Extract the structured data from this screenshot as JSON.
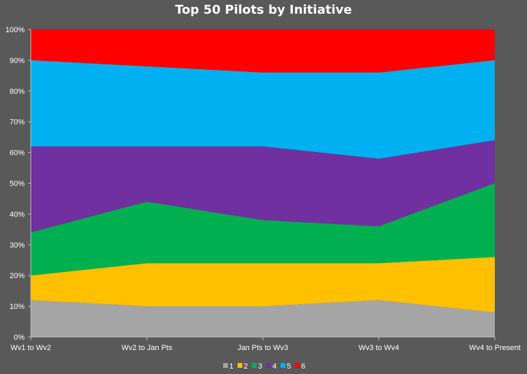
{
  "chart_data": {
    "type": "area",
    "stacked": "percent",
    "title": "Top 50 Pilots by Initiative",
    "categories": [
      "Wv1 to Wv2",
      "Wv2 to Jan Pts",
      "Jan Pts to Wv3",
      "Wv3 to Wv4",
      "Wv4 to Present"
    ],
    "ylim": [
      0,
      100
    ],
    "yticks": [
      "0%",
      "10%",
      "20%",
      "30%",
      "40%",
      "50%",
      "60%",
      "70%",
      "80%",
      "90%",
      "100%"
    ],
    "xlabel": "",
    "ylabel": "",
    "legend_position": "bottom",
    "series": [
      {
        "name": "1",
        "color": "#a5a5a5",
        "values": [
          12,
          10,
          10,
          12,
          8
        ]
      },
      {
        "name": "2",
        "color": "#ffc000",
        "values": [
          8,
          14,
          14,
          12,
          18
        ]
      },
      {
        "name": "3",
        "color": "#00b050",
        "values": [
          14,
          20,
          14,
          12,
          24
        ]
      },
      {
        "name": "4",
        "color": "#7030a0",
        "values": [
          28,
          18,
          24,
          22,
          14
        ]
      },
      {
        "name": "5",
        "color": "#00b0f0",
        "values": [
          28,
          26,
          24,
          28,
          26
        ]
      },
      {
        "name": "6",
        "color": "#ff0000",
        "values": [
          10,
          12,
          14,
          14,
          10
        ]
      }
    ]
  }
}
